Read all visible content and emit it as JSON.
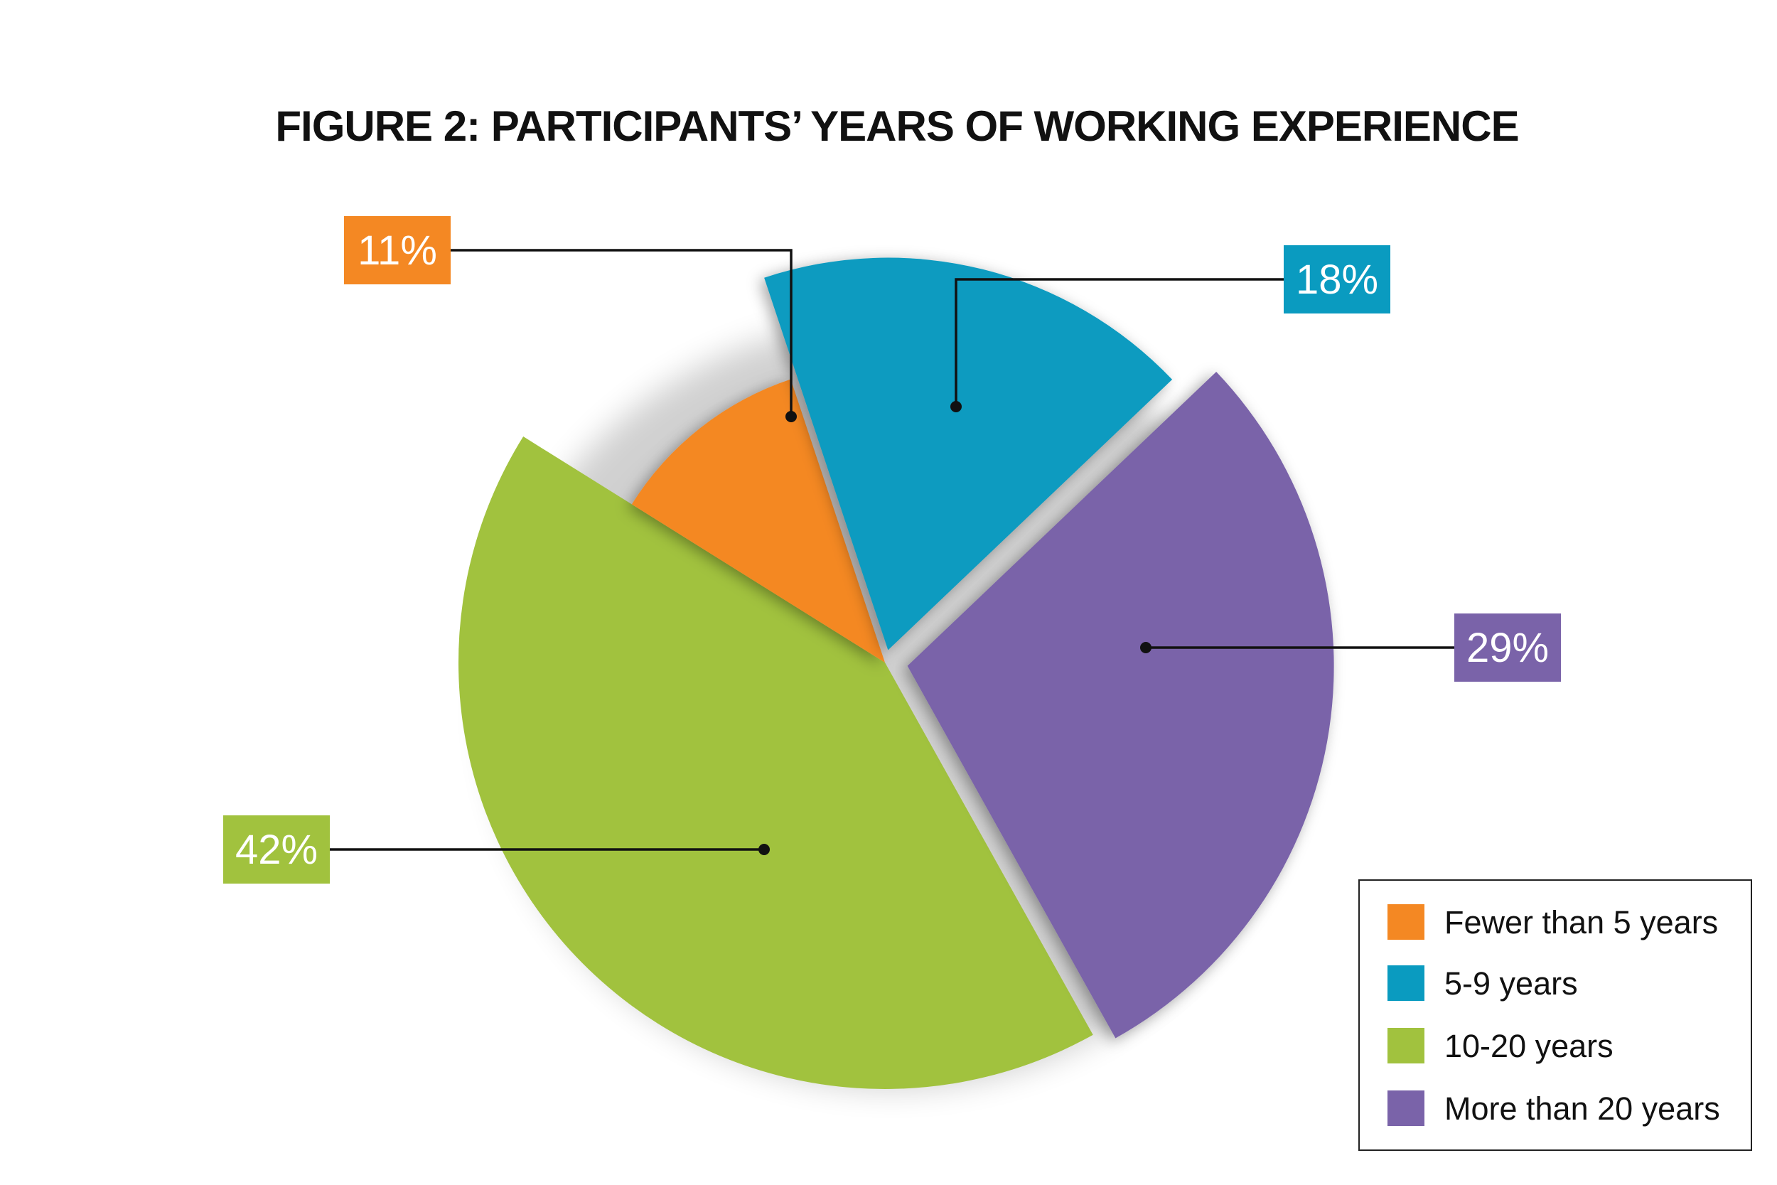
{
  "chart_data": {
    "type": "pie",
    "title": "FIGURE 2: PARTICIPANTS’ YEARS OF WORKING EXPERIENCE",
    "slices": [
      {
        "label": "Fewer than 5 years",
        "value": 11,
        "display": "11%",
        "color": "#F48823"
      },
      {
        "label": "5-9 years",
        "value": 18,
        "display": "18%",
        "color": "#0A9BC0"
      },
      {
        "label": "More than 20 years",
        "value": 29,
        "display": "29%",
        "color": "#7A63A9"
      },
      {
        "label": "10-20 years",
        "value": 42,
        "display": "42%",
        "color": "#A1C23E"
      }
    ],
    "legend": {
      "placement": "bottom-right",
      "entries": [
        {
          "label": "Fewer than 5 years",
          "color": "#F48823"
        },
        {
          "label": "5-9 years",
          "color": "#0A9BC0"
        },
        {
          "label": "10-20 years",
          "color": "#A1C23E"
        },
        {
          "label": "More than 20 years",
          "color": "#7A63A9"
        }
      ]
    }
  }
}
